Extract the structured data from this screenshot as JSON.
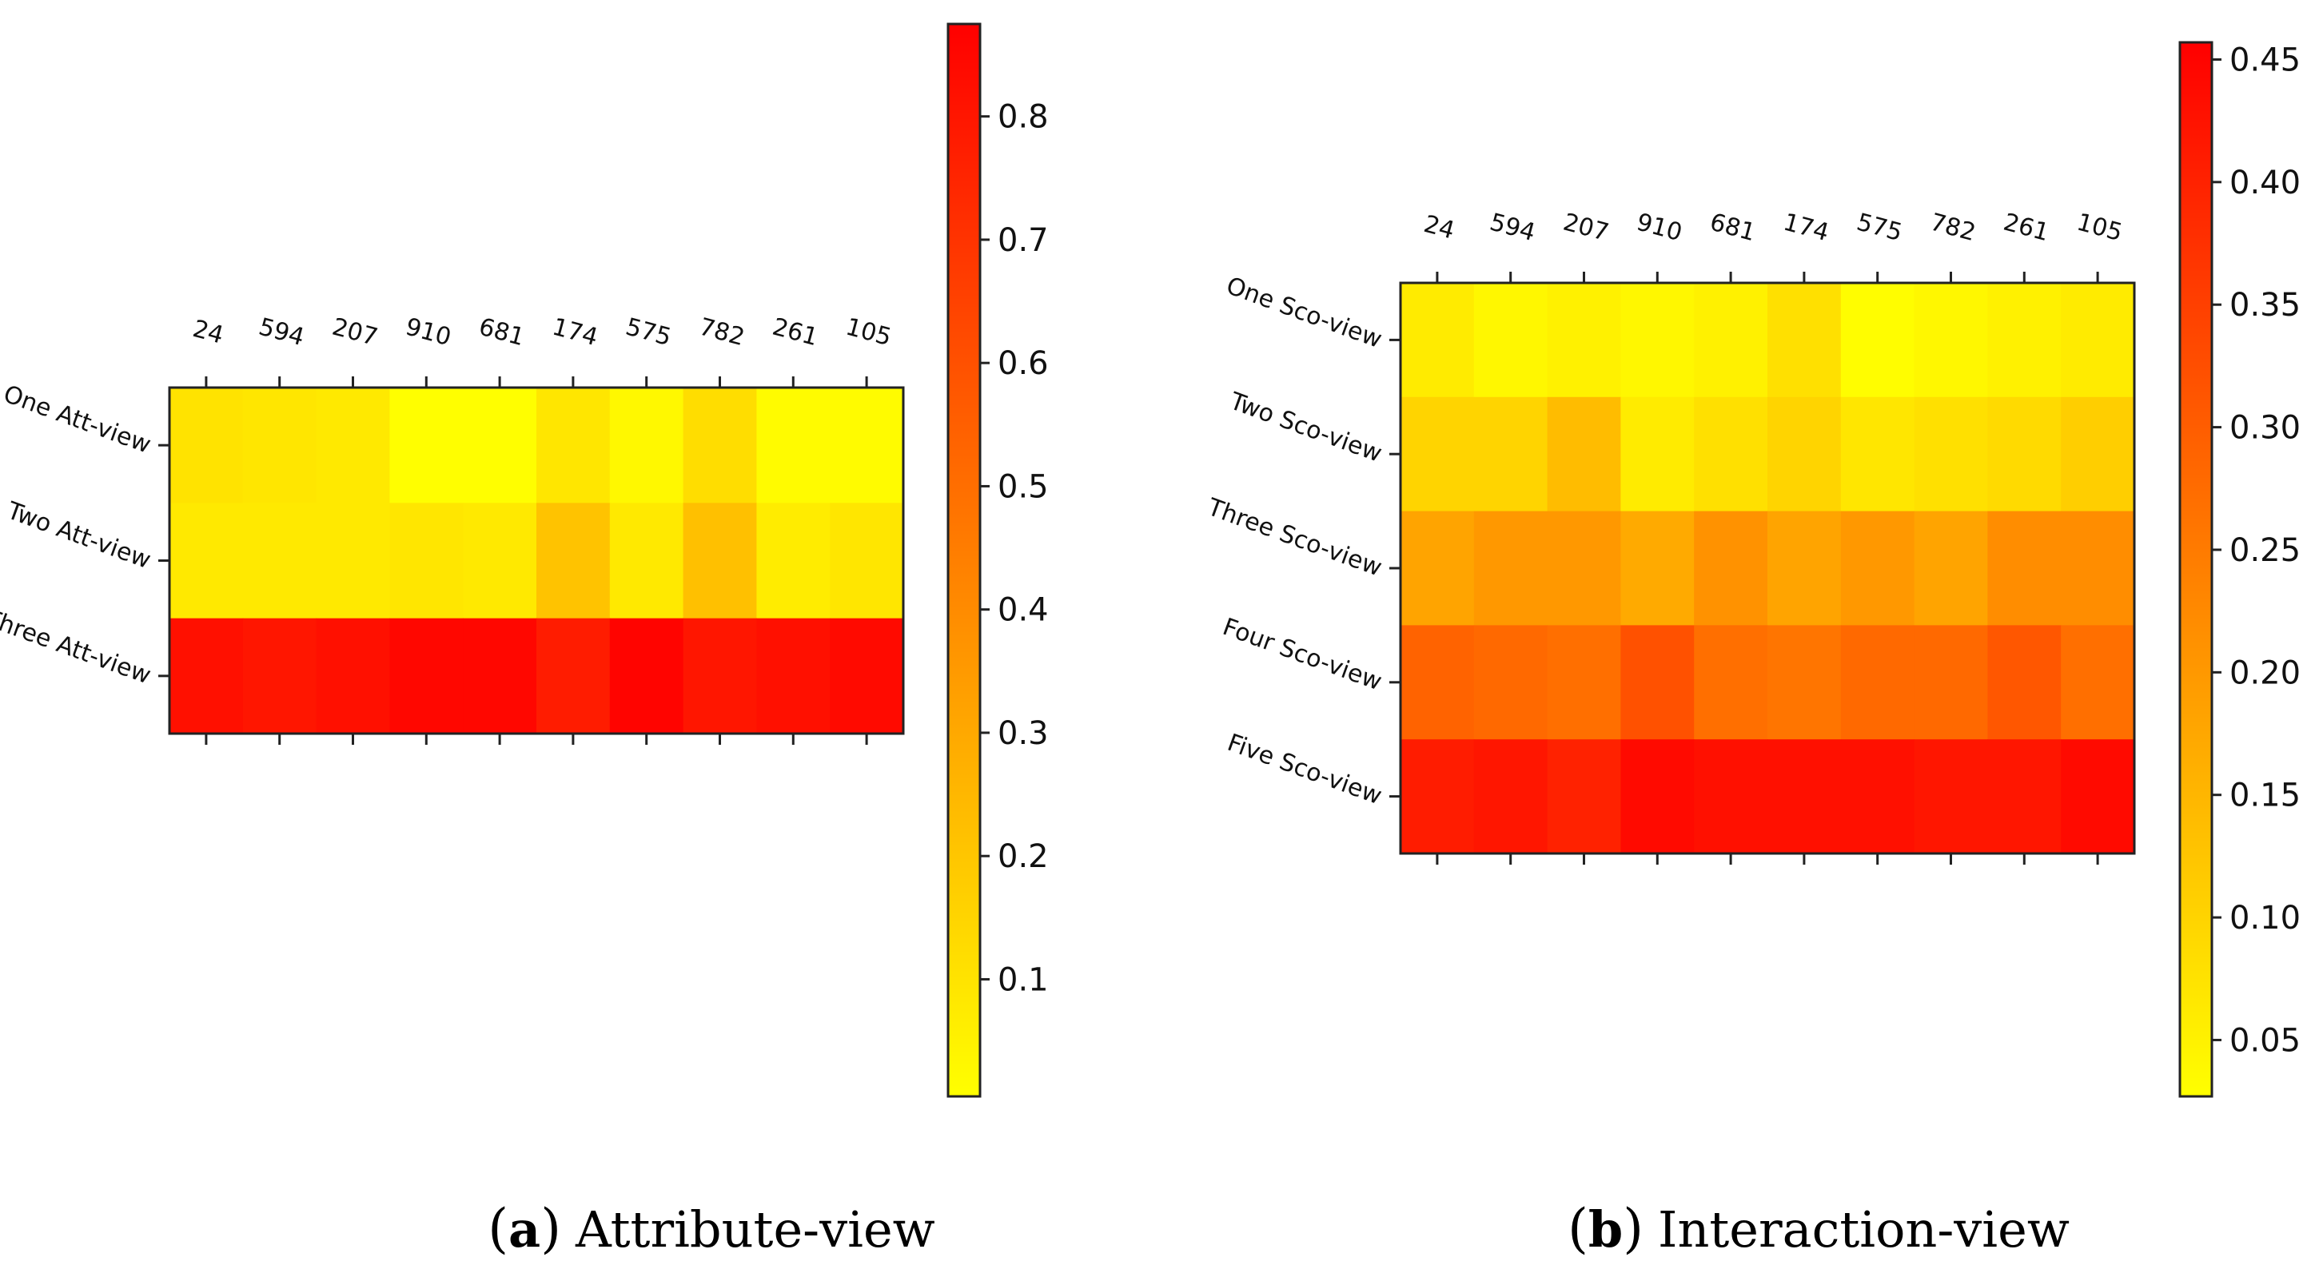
{
  "chart_data": [
    {
      "type": "heatmap",
      "panel_letter": "a",
      "caption": "Attribute-view",
      "columns": [
        "24",
        "594",
        "207",
        "910",
        "681",
        "174",
        "575",
        "782",
        "261",
        "105"
      ],
      "rows": [
        "One Att-view",
        "Two Att-view",
        "Three Att-view"
      ],
      "values": [
        [
          0.1,
          0.09,
          0.08,
          0.01,
          0.01,
          0.09,
          0.03,
          0.12,
          0.02,
          0.02
        ],
        [
          0.08,
          0.08,
          0.08,
          0.09,
          0.08,
          0.21,
          0.08,
          0.22,
          0.07,
          0.09
        ],
        [
          0.82,
          0.8,
          0.82,
          0.85,
          0.85,
          0.78,
          0.86,
          0.8,
          0.82,
          0.84
        ]
      ],
      "colormap": "autumn_r",
      "vmin": 0.005,
      "vmax": 0.875,
      "colorbar_ticks": [
        0.1,
        0.2,
        0.3,
        0.4,
        0.5,
        0.6,
        0.7,
        0.8
      ],
      "colorbar_tick_labels": [
        "0.1",
        "0.2",
        "0.3",
        "0.4",
        "0.5",
        "0.6",
        "0.7",
        "0.8"
      ]
    },
    {
      "type": "heatmap",
      "panel_letter": "b",
      "caption": "Interaction-view",
      "columns": [
        "24",
        "594",
        "207",
        "910",
        "681",
        "174",
        "575",
        "782",
        "261",
        "105"
      ],
      "rows": [
        "One Sco-view",
        "Two Sco-view",
        "Three Sco-view",
        "Four Sco-view",
        "Five Sco-view"
      ],
      "values": [
        [
          0.06,
          0.04,
          0.05,
          0.04,
          0.05,
          0.08,
          0.03,
          0.04,
          0.05,
          0.06
        ],
        [
          0.1,
          0.1,
          0.14,
          0.06,
          0.08,
          0.1,
          0.07,
          0.08,
          0.09,
          0.11
        ],
        [
          0.18,
          0.2,
          0.2,
          0.17,
          0.21,
          0.18,
          0.2,
          0.18,
          0.22,
          0.22
        ],
        [
          0.29,
          0.28,
          0.27,
          0.32,
          0.27,
          0.26,
          0.28,
          0.28,
          0.31,
          0.27
        ],
        [
          0.41,
          0.42,
          0.4,
          0.44,
          0.43,
          0.43,
          0.43,
          0.42,
          0.42,
          0.44
        ]
      ],
      "colormap": "autumn_r",
      "vmin": 0.027,
      "vmax": 0.457,
      "colorbar_ticks": [
        0.05,
        0.1,
        0.15,
        0.2,
        0.25,
        0.3,
        0.35,
        0.4,
        0.45
      ],
      "colorbar_tick_labels": [
        "0.05",
        "0.10",
        "0.15",
        "0.20",
        "0.25",
        "0.30",
        "0.35",
        "0.40",
        "0.45"
      ]
    }
  ]
}
